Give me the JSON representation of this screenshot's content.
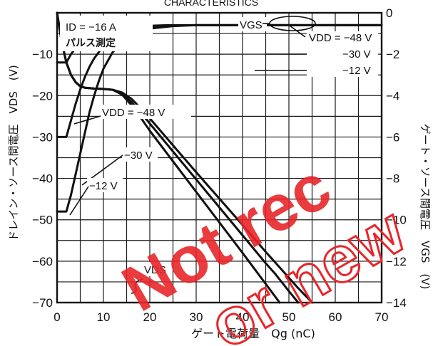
{
  "chart_data": {
    "type": "line",
    "title": "CHARACTERISTICS",
    "xlabel": "ゲート電荷量　Qg (nC)",
    "ylabel_left": "ドレイン・ソース間電圧　VDS　(V)",
    "ylabel_right": "ゲート・ソース間電圧　VGS　(V)",
    "xlim": [
      0,
      70
    ],
    "ylim_left": [
      -70,
      0
    ],
    "ylim_right": [
      -14,
      0
    ],
    "x_ticks": [
      "0",
      "10",
      "20",
      "30",
      "40",
      "50",
      "60",
      "70"
    ],
    "y_left_ticks": [
      "-70",
      "-60",
      "-50",
      "-40",
      "-30",
      "-20",
      "-10"
    ],
    "y_right_ticks": [
      "-14",
      "-12",
      "-10",
      "-8",
      "-6",
      "-4",
      "-2",
      "0"
    ],
    "grid": true,
    "conditions": [
      "ID = −16 A",
      "パルス測定"
    ],
    "series": [
      {
        "name": "VDS VDD = −48 V",
        "axis": "left",
        "points": [
          [
            0,
            -48
          ],
          [
            2,
            -48
          ],
          [
            3,
            -44
          ],
          [
            4,
            -39
          ],
          [
            5,
            -34
          ],
          [
            6,
            -29
          ],
          [
            7,
            -24
          ],
          [
            8,
            -20
          ],
          [
            9,
            -16.5
          ],
          [
            10,
            -13.5
          ],
          [
            12,
            -9.5
          ],
          [
            14,
            -7
          ],
          [
            16,
            -5.5
          ],
          [
            18,
            -4.5
          ],
          [
            20,
            -3.8
          ],
          [
            25,
            -3.2
          ],
          [
            30,
            -3
          ],
          [
            70,
            -3
          ]
        ]
      },
      {
        "name": "VDS VDD = −30 V",
        "axis": "left",
        "points": [
          [
            0,
            -30
          ],
          [
            2,
            -30
          ],
          [
            3,
            -26
          ],
          [
            4,
            -22
          ],
          [
            5,
            -18.5
          ],
          [
            6,
            -15.5
          ],
          [
            7,
            -13
          ],
          [
            8,
            -11
          ],
          [
            10,
            -8
          ],
          [
            12,
            -6
          ],
          [
            14,
            -4.8
          ],
          [
            16,
            -4
          ],
          [
            18,
            -3.5
          ],
          [
            22,
            -3.1
          ],
          [
            30,
            -3
          ],
          [
            70,
            -3
          ]
        ]
      },
      {
        "name": "VDS VDD = −12 V",
        "axis": "left",
        "points": [
          [
            0,
            -12
          ],
          [
            2,
            -12
          ],
          [
            3,
            -10
          ],
          [
            4,
            -8.5
          ],
          [
            6,
            -6.5
          ],
          [
            8,
            -5.3
          ],
          [
            10,
            -4.5
          ],
          [
            14,
            -3.6
          ],
          [
            18,
            -3.2
          ],
          [
            24,
            -3
          ],
          [
            70,
            -3
          ]
        ]
      },
      {
        "name": "VGS VDD = −48 V",
        "axis": "right",
        "points": [
          [
            0,
            0
          ],
          [
            1,
            -1.4
          ],
          [
            2,
            -2.4
          ],
          [
            3,
            -3
          ],
          [
            4,
            -3.35
          ],
          [
            5,
            -3.55
          ],
          [
            6,
            -3.62
          ],
          [
            8,
            -3.66
          ],
          [
            10,
            -3.68
          ],
          [
            12,
            -3.72
          ],
          [
            14,
            -3.85
          ],
          [
            16,
            -4.15
          ],
          [
            18,
            -4.6
          ],
          [
            20,
            -5.1
          ],
          [
            30,
            -7.7
          ],
          [
            40,
            -10.25
          ],
          [
            45,
            -11.55
          ],
          [
            50,
            -12.8
          ],
          [
            52,
            -13.3
          ],
          [
            55,
            -14
          ]
        ]
      },
      {
        "name": "VGS VDD = −30 V",
        "axis": "right",
        "points": [
          [
            0,
            0
          ],
          [
            1,
            -1.4
          ],
          [
            2,
            -2.4
          ],
          [
            3,
            -3
          ],
          [
            4,
            -3.35
          ],
          [
            5,
            -3.55
          ],
          [
            6,
            -3.62
          ],
          [
            8,
            -3.66
          ],
          [
            10,
            -3.68
          ],
          [
            12,
            -3.72
          ],
          [
            14,
            -3.9
          ],
          [
            16,
            -4.3
          ],
          [
            18,
            -4.8
          ],
          [
            20,
            -5.35
          ],
          [
            30,
            -8.05
          ],
          [
            40,
            -10.75
          ],
          [
            45,
            -12.1
          ],
          [
            47,
            -12.6
          ],
          [
            50,
            -13.45
          ],
          [
            52,
            -14
          ]
        ]
      },
      {
        "name": "VGS VDD = −12 V",
        "axis": "right",
        "points": [
          [
            0,
            0
          ],
          [
            1,
            -1.4
          ],
          [
            2,
            -2.4
          ],
          [
            3,
            -3
          ],
          [
            4,
            -3.35
          ],
          [
            5,
            -3.55
          ],
          [
            6,
            -3.62
          ],
          [
            8,
            -3.66
          ],
          [
            10,
            -3.68
          ],
          [
            12,
            -3.72
          ],
          [
            14,
            -3.95
          ],
          [
            16,
            -4.45
          ],
          [
            18,
            -5.05
          ],
          [
            20,
            -5.7
          ],
          [
            30,
            -8.65
          ],
          [
            40,
            -11.6
          ],
          [
            44,
            -12.8
          ],
          [
            45,
            -13.1
          ],
          [
            48,
            -14
          ]
        ]
      }
    ],
    "annotations": {
      "vgs_label": "VGS",
      "vds_label": "VDS",
      "vdd_top": [
        "VDD = −48 V",
        "−30 V",
        "−12 V"
      ],
      "vdd_left": [
        "VDD = −48 V",
        "−30 V",
        "−12 V"
      ]
    }
  },
  "watermark": {
    "line1": "Not rec",
    "line2": "or new",
    "color": "#e8262b"
  }
}
